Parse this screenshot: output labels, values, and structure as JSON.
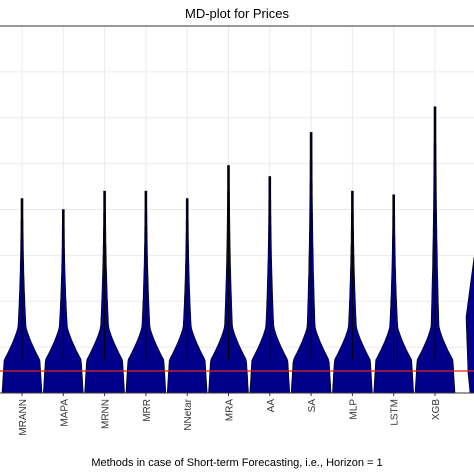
{
  "chart_data": {
    "type": "violin",
    "title": "MD-plot for Prices",
    "xlabel": "Methods in case of Short-term Forecasting, i.e., Horizon = 1",
    "ylabel": "",
    "categories": [
      "MRANN",
      "MAPA",
      "MRNN",
      "MRR",
      "NNetar",
      "MRA",
      "AA",
      "SA",
      "MLP",
      "LSTM",
      "XGB"
    ],
    "series": [
      {
        "values": [
          {
            "min": 0.0,
            "median": 0.09,
            "max": 0.53
          },
          {
            "min": 0.0,
            "median": 0.09,
            "max": 0.5
          },
          {
            "min": 0.0,
            "median": 0.09,
            "max": 0.55
          },
          {
            "min": 0.0,
            "median": 0.09,
            "max": 0.55
          },
          {
            "min": 0.0,
            "median": 0.09,
            "max": 0.53
          },
          {
            "min": 0.0,
            "median": 0.09,
            "max": 0.62
          },
          {
            "min": 0.0,
            "median": 0.09,
            "max": 0.59
          },
          {
            "min": 0.0,
            "median": 0.09,
            "max": 0.71
          },
          {
            "min": 0.0,
            "median": 0.09,
            "max": 0.55
          },
          {
            "min": 0.0,
            "median": 0.09,
            "max": 0.54
          },
          {
            "min": 0.0,
            "median": 0.09,
            "max": 0.78
          }
        ]
      }
    ],
    "reference_line": {
      "value": 0.06,
      "color": "#e0241b"
    },
    "grid": true,
    "colors": {
      "violin": "#00008b",
      "grid": "#ebebeb",
      "panel_border": "#333333"
    }
  }
}
